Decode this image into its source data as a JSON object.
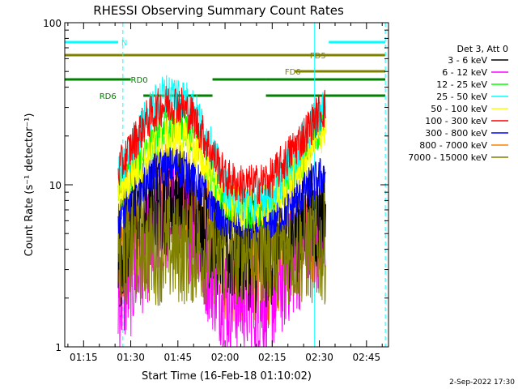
{
  "chart_data": {
    "type": "line",
    "title": "RHESSI Observing Summary Count Rates",
    "xlabel": "Start Time (16-Feb-18 01:10:02)",
    "ylabel": "Count Rate (s⁻¹ detector⁻¹)",
    "x_ticks": [
      "01:15",
      "01:30",
      "01:45",
      "02:00",
      "02:15",
      "02:30",
      "02:45"
    ],
    "x_tick_minutes": [
      15,
      30,
      45,
      60,
      75,
      90,
      105
    ],
    "xlim_minutes": [
      9,
      112
    ],
    "y_ticks": [
      "1",
      "10",
      "100"
    ],
    "y_tick_values": [
      1,
      10,
      100
    ],
    "ylim": [
      1,
      100
    ],
    "y_scale": "log",
    "legend_title": "Det 3, Att 0",
    "legend_placement": "right",
    "series": [
      {
        "name": "3 - 6 keV",
        "color": "#000000",
        "x": [
          26,
          30,
          35,
          40,
          45,
          50,
          55,
          60,
          65,
          70,
          75,
          80,
          85,
          90,
          92
        ],
        "values": [
          3.5,
          6,
          7,
          8,
          8.5,
          7,
          5,
          4,
          4,
          3.5,
          4,
          5,
          6,
          6.5,
          7
        ]
      },
      {
        "name": "6 - 12 keV",
        "color": "#ff00ff",
        "x": [
          26,
          30,
          35,
          40,
          45,
          50,
          55,
          60,
          65,
          70,
          75,
          80,
          85,
          90,
          92
        ],
        "values": [
          2,
          2.5,
          4,
          6,
          7,
          5,
          3,
          2,
          2,
          1.8,
          2,
          3,
          4,
          5,
          6
        ]
      },
      {
        "name": "12 - 25 keV",
        "color": "#00ff00",
        "x": [
          26,
          30,
          35,
          40,
          45,
          50,
          55,
          60,
          65,
          70,
          75,
          80,
          85,
          90,
          92
        ],
        "values": [
          9,
          12,
          17,
          22,
          23,
          20,
          13,
          8,
          7,
          7,
          8,
          11,
          15,
          22,
          24
        ]
      },
      {
        "name": "25 - 50 keV",
        "color": "#00ffff",
        "x": [
          26,
          30,
          35,
          40,
          45,
          50,
          55,
          60,
          65,
          70,
          75,
          80,
          85,
          90,
          92
        ],
        "values": [
          11,
          16,
          26,
          36,
          37,
          30,
          18,
          10,
          8,
          8,
          9,
          13,
          19,
          27,
          30
        ]
      },
      {
        "name": "50 - 100 keV",
        "color": "#ffff00",
        "x": [
          26,
          30,
          35,
          40,
          45,
          50,
          55,
          60,
          65,
          70,
          75,
          80,
          85,
          90,
          92
        ],
        "values": [
          9,
          11,
          15,
          19,
          20,
          17,
          12,
          8,
          7,
          7,
          8,
          10,
          14,
          20,
          22
        ]
      },
      {
        "name": "100 - 300 keV",
        "color": "#ff0000",
        "x": [
          26,
          30,
          35,
          40,
          45,
          50,
          55,
          60,
          65,
          70,
          75,
          80,
          85,
          90,
          92
        ],
        "values": [
          12,
          17,
          25,
          31,
          32,
          26,
          17,
          11,
          10,
          10,
          11,
          15,
          20,
          28,
          30
        ]
      },
      {
        "name": "300 - 800 keV",
        "color": "#0000ff",
        "x": [
          26,
          30,
          35,
          40,
          45,
          50,
          55,
          60,
          65,
          70,
          75,
          80,
          85,
          90,
          92
        ],
        "values": [
          6,
          8,
          11,
          13,
          13,
          11,
          8,
          6,
          6,
          6,
          6,
          7,
          9,
          11,
          12
        ]
      },
      {
        "name": "800 - 7000 keV",
        "color": "#ff8000",
        "x": [
          26,
          30,
          35,
          40,
          45,
          50,
          55,
          60,
          65,
          70,
          75,
          80,
          85,
          90,
          92
        ],
        "values": [
          3,
          4,
          6,
          8,
          8,
          7,
          5,
          3,
          3,
          3,
          3,
          4,
          5,
          6,
          6.5
        ]
      },
      {
        "name": "7000 - 15000 keV",
        "color": "#808000",
        "x": [
          26,
          30,
          35,
          40,
          45,
          50,
          55,
          60,
          65,
          70,
          75,
          80,
          85,
          90,
          92
        ],
        "values": [
          4,
          4,
          4,
          4,
          4,
          4,
          4,
          4,
          4,
          4,
          4,
          4,
          4,
          4,
          4
        ]
      }
    ],
    "flag_bars": [
      {
        "label": "N",
        "color": "#00ffff",
        "segments": [
          [
            9,
            26
          ],
          [
            93,
            111
          ]
        ],
        "label_at": 27,
        "y_frac": 0.06
      },
      {
        "label": "FD5",
        "color": "#808000",
        "segments": [
          [
            9,
            111
          ]
        ],
        "label_at": 87,
        "y_frac": 0.1
      },
      {
        "label": "FD6",
        "color": "#808000",
        "segments": [
          [
            82,
            111
          ]
        ],
        "label_at": 79,
        "y_frac": 0.15
      },
      {
        "label": "RD0",
        "color": "#008000",
        "segments": [
          [
            9,
            30
          ],
          [
            56,
            73
          ],
          [
            73,
            111
          ]
        ],
        "label_at": 30,
        "y_frac": 0.175
      },
      {
        "label": "RD6",
        "color": "#008000",
        "segments": [
          [
            34,
            56
          ],
          [
            73,
            111
          ]
        ],
        "label_at": 20,
        "y_frac": 0.225
      }
    ],
    "vlines": [
      {
        "x": 9,
        "color": "#00ffff",
        "style": "solid"
      },
      {
        "x": 27.5,
        "color": "#00ffff",
        "style": "dashed"
      },
      {
        "x": 88.5,
        "color": "#00ffff",
        "style": "solid"
      },
      {
        "x": 111,
        "color": "#00ffff",
        "style": "dashed"
      }
    ]
  },
  "footer": {
    "timestamp": "2-Sep-2022 17:30"
  }
}
